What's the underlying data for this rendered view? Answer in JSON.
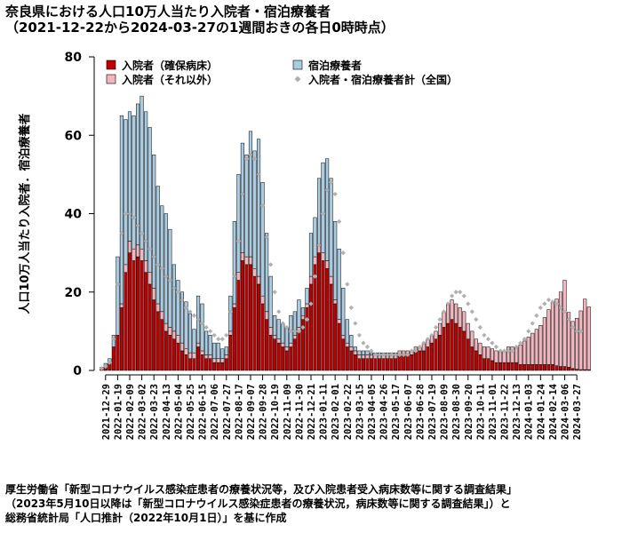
{
  "title": "奈良県における人口10万人当たり入院者・宿泊療養者",
  "subtitle": "（2021-12-22から2024-03-27の1週間おきの各日0時時点）",
  "source_lines": [
    "厚生労働省「新型コロナウイルス感染症患者の療養状況等，及び入院患者受入病床数等に関する調査結果」",
    "（2023年5月10日以降は「新型コロナウイルス感染症患者の療養状況，病床数等に関する調査結果」）と",
    "総務省統計局「人口推計（2022年10月1日）」を基に作成"
  ],
  "chart_data": {
    "type": "bar",
    "title": "奈良県における人口10万人当たり入院者・宿泊療養者",
    "subtitle": "（2021-12-22から2024-03-27の1週間おきの各日0時時点）",
    "ylabel": "人口10万人当たり入院者．宿泊療養者",
    "ylim": [
      0,
      80
    ],
    "yticks": [
      0,
      20,
      40,
      60,
      80
    ],
    "start_date": "2021-12-22",
    "interval_days": 7,
    "x_tick_labels": [
      "2021-12-29",
      "2022-01-19",
      "2022-02-09",
      "2022-03-02",
      "2022-03-23",
      "2022-04-13",
      "2022-05-04",
      "2022-05-25",
      "2022-06-15",
      "2022-07-06",
      "2022-07-27",
      "2022-08-17",
      "2022-09-07",
      "2022-09-28",
      "2022-10-19",
      "2022-11-09",
      "2022-11-30",
      "2022-12-21",
      "2023-01-11",
      "2023-02-01",
      "2023-02-22",
      "2023-03-15",
      "2023-04-05",
      "2023-04-26",
      "2023-05-17",
      "2023-06-07",
      "2023-06-28",
      "2023-07-19",
      "2023-08-09",
      "2023-08-30",
      "2023-09-20",
      "2023-10-11",
      "2023-11-01",
      "2023-11-22",
      "2023-12-13",
      "2024-01-03",
      "2024-01-24",
      "2024-02-14",
      "2024-03-06",
      "2024-03-27"
    ],
    "legend": {
      "placement": "top-left",
      "items": [
        "入院者（確保病床）",
        "入院者（それ以外）",
        "宿泊療養者",
        "入院者・宿泊療養者計（全国）"
      ]
    },
    "colors": {
      "hospital_secured": "#c00000",
      "hospital_other": "#f4b6be",
      "lodging": "#a9cce3",
      "national": "#b0b0b0"
    },
    "series": [
      {
        "name": "入院者（確保病床）",
        "values": [
          0.3,
          0.8,
          2,
          6,
          9,
          16,
          25,
          30,
          28,
          29,
          28,
          25,
          22,
          18,
          15,
          13,
          10,
          9,
          8,
          7,
          5,
          4,
          3,
          3,
          6,
          4,
          3,
          3,
          2,
          2,
          2,
          3,
          9,
          16,
          23,
          28,
          27,
          27,
          24,
          22,
          17,
          13,
          9,
          8,
          7,
          6,
          5,
          6,
          8,
          10,
          13,
          16,
          22,
          27,
          30,
          28,
          26,
          22,
          17,
          12,
          8,
          6,
          5,
          4,
          3,
          3,
          3,
          3,
          3,
          3,
          3,
          3,
          3,
          3,
          4,
          4,
          4,
          4,
          5,
          5,
          5,
          6,
          7,
          8,
          9,
          11,
          12,
          13,
          12,
          11,
          10,
          8,
          6,
          5,
          4,
          3,
          3,
          2.5,
          2,
          2,
          2,
          2,
          2,
          2,
          1.5,
          1.5,
          1.5,
          1.5,
          1.5,
          1.5,
          1.5,
          1.5,
          1.5,
          1.2,
          1,
          1,
          0.8,
          0.5,
          0.3,
          0.2,
          0.2,
          0.2
        ]
      },
      {
        "name": "入院者（それ以外）",
        "values": [
          0,
          0,
          0,
          0,
          0,
          1,
          2,
          3,
          3,
          3,
          3,
          3,
          3,
          3,
          2,
          2,
          2,
          2,
          2,
          2,
          2,
          1.5,
          1.5,
          1.5,
          1,
          1,
          1,
          1,
          1,
          1,
          1,
          1,
          1,
          1,
          2,
          2,
          2,
          2,
          2,
          2,
          2,
          2,
          2,
          1,
          1,
          1,
          1,
          1,
          1,
          1,
          1,
          1,
          2,
          2,
          2,
          2,
          2,
          2,
          1,
          1,
          1,
          1,
          1,
          1,
          1,
          1,
          1,
          1,
          1,
          1,
          1,
          1,
          1,
          1,
          1,
          1,
          1,
          1,
          1,
          1,
          2,
          2,
          2,
          2,
          3,
          4,
          5,
          5,
          5,
          5,
          5,
          4,
          4,
          3,
          3,
          3,
          3,
          3,
          3,
          3,
          3,
          4,
          4,
          4,
          5,
          6,
          7,
          8,
          9,
          10,
          12,
          14,
          16,
          17,
          19,
          22,
          14,
          12,
          13,
          15,
          18,
          16
        ]
      },
      {
        "name": "宿泊療養者",
        "values": [
          0.5,
          1,
          1,
          3,
          20,
          48,
          37,
          33,
          34,
          36,
          39,
          38,
          37,
          34,
          30,
          27,
          28,
          25,
          17,
          14,
          13,
          12,
          10,
          6,
          12,
          12,
          6,
          5,
          4,
          4,
          2.5,
          2,
          9,
          21,
          25,
          28,
          26,
          32,
          30,
          35,
          29,
          20,
          13,
          5,
          5,
          5,
          5,
          7,
          6,
          7,
          2,
          4,
          11,
          10,
          17,
          23,
          26,
          25,
          20,
          18,
          12,
          6,
          3,
          1,
          1,
          1,
          1,
          0.5,
          0.5,
          0.5,
          0.5,
          0.5,
          0.5,
          0.5,
          0,
          0,
          0,
          0,
          0,
          0,
          0,
          0,
          0,
          0,
          0,
          0,
          0,
          0,
          0,
          0,
          0,
          0,
          0,
          0,
          0,
          0,
          0,
          0,
          0,
          0,
          0,
          0,
          0,
          0,
          0,
          0,
          0,
          0,
          0,
          0,
          0,
          0,
          0,
          0,
          0,
          0,
          0,
          0,
          0,
          0,
          0,
          0
        ]
      },
      {
        "name": "入院者・宿泊療養者計（全国）",
        "values": [
          0.5,
          1,
          2,
          8,
          22,
          35,
          40,
          40,
          39,
          37,
          35,
          33,
          31,
          29,
          27,
          26,
          24,
          23,
          21,
          20,
          18,
          16,
          15,
          14,
          13,
          12,
          11,
          10,
          9,
          8,
          8,
          9,
          15,
          24,
          33,
          45,
          54,
          55,
          54,
          50,
          42,
          34,
          27,
          20,
          15,
          12,
          11,
          10,
          10,
          10,
          11,
          13,
          17,
          24,
          32,
          40,
          46,
          48,
          45,
          38,
          30,
          22,
          16,
          12,
          9,
          7,
          6,
          5,
          4,
          4,
          4,
          4,
          4,
          4,
          4,
          4,
          4,
          5,
          5,
          6,
          7,
          8,
          9,
          11,
          13,
          15,
          17,
          19,
          20,
          20,
          19,
          17,
          15,
          13,
          11,
          9,
          8,
          7,
          6,
          5,
          5,
          5,
          5,
          6,
          7,
          8,
          10,
          12,
          14,
          16,
          17,
          18,
          17.5,
          17,
          16,
          15,
          13,
          11,
          10,
          10
        ]
      }
    ]
  }
}
